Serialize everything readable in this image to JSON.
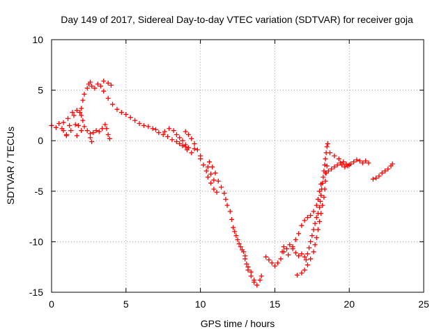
{
  "chart_data": {
    "type": "scatter",
    "title": "Day 149 of 2017, Sidereal Day-to-day VTEC variation (SDTVAR) for receiver goja",
    "xlabel": "GPS time / hours",
    "ylabel": "SDTVAR / TECUs",
    "xlim": [
      0,
      25
    ],
    "ylim": [
      -15,
      10
    ],
    "xticks": [
      0,
      5,
      10,
      15,
      20,
      25
    ],
    "yticks": [
      10,
      5,
      0,
      -5,
      -10,
      -15
    ],
    "grid": true,
    "marker": "+",
    "color": "#ff0000",
    "series": [
      {
        "name": "segment-1",
        "points": [
          [
            0.0,
            1.5
          ],
          [
            0.3,
            1.3
          ],
          [
            0.5,
            1.7
          ],
          [
            0.7,
            1.2
          ],
          [
            0.8,
            1.8
          ],
          [
            1.0,
            0.6
          ],
          [
            1.1,
            2.2
          ],
          [
            1.3,
            1.0
          ],
          [
            1.4,
            2.8
          ],
          [
            1.6,
            1.6
          ],
          [
            1.7,
            0.5
          ],
          [
            1.8,
            1.5
          ],
          [
            1.9,
            2.8
          ],
          [
            2.0,
            3.2
          ],
          [
            2.1,
            2.0
          ],
          [
            2.0,
            1.0
          ]
        ]
      },
      {
        "name": "segment-2",
        "points": [
          [
            0.8,
            1.0
          ],
          [
            1.0,
            0.5
          ],
          [
            1.2,
            1.5
          ],
          [
            1.5,
            2.5
          ],
          [
            1.7,
            3.0
          ],
          [
            2.0,
            2.5
          ],
          [
            2.1,
            4.0
          ],
          [
            2.2,
            4.6
          ],
          [
            2.4,
            5.2
          ],
          [
            2.5,
            5.6
          ],
          [
            2.6,
            5.8
          ],
          [
            2.7,
            5.4
          ],
          [
            2.9,
            5.2
          ],
          [
            3.1,
            5.6
          ],
          [
            3.3,
            5.4
          ],
          [
            3.5,
            5.9
          ],
          [
            3.8,
            5.7
          ],
          [
            4.0,
            5.5
          ]
        ]
      },
      {
        "name": "segment-3",
        "points": [
          [
            2.2,
            1.4
          ],
          [
            2.4,
            1.0
          ],
          [
            2.6,
            0.7
          ],
          [
            2.8,
            0.8
          ],
          [
            3.0,
            1.0
          ],
          [
            3.2,
            0.9
          ],
          [
            3.4,
            1.2
          ],
          [
            3.6,
            1.6
          ],
          [
            3.7,
            1.2
          ],
          [
            3.8,
            0.6
          ],
          [
            3.9,
            0.2
          ],
          [
            2.6,
            0.3
          ],
          [
            2.7,
            -0.1
          ]
        ]
      },
      {
        "name": "segment-4",
        "points": [
          [
            3.5,
            4.9
          ],
          [
            3.8,
            4.2
          ],
          [
            4.1,
            3.6
          ],
          [
            4.4,
            3.1
          ],
          [
            4.7,
            2.8
          ],
          [
            5.0,
            2.6
          ],
          [
            5.3,
            2.3
          ],
          [
            5.6,
            2.0
          ],
          [
            5.9,
            1.7
          ],
          [
            6.2,
            1.5
          ],
          [
            6.5,
            1.4
          ],
          [
            6.8,
            1.2
          ],
          [
            7.0,
            1.1
          ],
          [
            7.2,
            0.8
          ],
          [
            7.5,
            0.6
          ],
          [
            7.8,
            0.4
          ],
          [
            8.1,
            0.1
          ],
          [
            8.4,
            -0.1
          ],
          [
            8.6,
            -0.3
          ],
          [
            8.8,
            -0.5
          ],
          [
            9.0,
            -0.6
          ]
        ]
      },
      {
        "name": "segment-5",
        "points": [
          [
            7.6,
            0.9
          ],
          [
            7.9,
            1.2
          ],
          [
            8.2,
            1.0
          ],
          [
            8.4,
            0.6
          ],
          [
            8.6,
            0.3
          ],
          [
            8.8,
            0.0
          ],
          [
            9.0,
            -0.4
          ],
          [
            9.1,
            -0.9
          ],
          [
            9.0,
            0.9
          ],
          [
            9.2,
            0.6
          ],
          [
            9.4,
            0.2
          ],
          [
            9.6,
            -0.3
          ],
          [
            9.8,
            -0.9
          ],
          [
            10.0,
            -1.5
          ],
          [
            9.6,
            -0.8
          ],
          [
            9.4,
            -1.2
          ],
          [
            9.2,
            -0.7
          ]
        ]
      },
      {
        "name": "segment-6",
        "points": [
          [
            10.0,
            -1.8
          ],
          [
            10.2,
            -2.4
          ],
          [
            10.4,
            -3.0
          ],
          [
            10.5,
            -3.6
          ],
          [
            10.7,
            -4.2
          ],
          [
            10.9,
            -4.8
          ],
          [
            11.1,
            -5.1
          ],
          [
            10.9,
            -3.9
          ],
          [
            10.7,
            -3.3
          ],
          [
            10.5,
            -2.6
          ],
          [
            10.6,
            -2.1
          ],
          [
            10.8,
            -2.6
          ],
          [
            11.0,
            -3.2
          ],
          [
            11.2,
            -4.0
          ],
          [
            11.4,
            -4.6
          ],
          [
            11.6,
            -5.2
          ],
          [
            11.7,
            -5.8
          ],
          [
            11.8,
            -6.4
          ],
          [
            12.0,
            -7.0
          ],
          [
            12.1,
            -7.8
          ],
          [
            12.2,
            -8.6
          ],
          [
            12.4,
            -9.4
          ],
          [
            12.6,
            -10.2
          ],
          [
            12.8,
            -10.8
          ],
          [
            13.0,
            -11.4
          ],
          [
            13.1,
            -12.2
          ],
          [
            13.2,
            -12.8
          ],
          [
            13.4,
            -13.4
          ],
          [
            13.6,
            -14.0
          ],
          [
            13.8,
            -14.3
          ],
          [
            14.0,
            -13.8
          ],
          [
            14.1,
            -13.4
          ]
        ]
      },
      {
        "name": "segment-7",
        "points": [
          [
            12.3,
            -9.0
          ],
          [
            12.5,
            -9.8
          ],
          [
            12.7,
            -10.5
          ],
          [
            12.9,
            -11.0
          ],
          [
            13.0,
            -11.7
          ],
          [
            13.2,
            -12.5
          ],
          [
            13.4,
            -13.0
          ],
          [
            13.6,
            -13.8
          ]
        ]
      },
      {
        "name": "segment-8",
        "points": [
          [
            14.4,
            -11.5
          ],
          [
            14.6,
            -11.8
          ],
          [
            14.8,
            -12.1
          ],
          [
            15.0,
            -12.4
          ],
          [
            15.2,
            -12.1
          ],
          [
            15.4,
            -11.7
          ],
          [
            15.5,
            -11.0
          ],
          [
            15.6,
            -10.5
          ],
          [
            15.8,
            -10.7
          ],
          [
            16.0,
            -10.3
          ],
          [
            16.2,
            -10.7
          ],
          [
            16.4,
            -11.1
          ],
          [
            16.6,
            -11.4
          ],
          [
            16.8,
            -11.2
          ],
          [
            17.0,
            -11.5
          ],
          [
            17.1,
            -11.8
          ],
          [
            17.2,
            -11.2
          ],
          [
            17.3,
            -10.6
          ],
          [
            17.4,
            -10.0
          ],
          [
            17.5,
            -9.4
          ],
          [
            17.6,
            -8.8
          ],
          [
            17.7,
            -8.2
          ],
          [
            17.8,
            -7.6
          ],
          [
            17.9,
            -7.2
          ],
          [
            18.0,
            -6.6
          ],
          [
            18.05,
            -6.0
          ],
          [
            18.1,
            -5.4
          ],
          [
            18.15,
            -4.8
          ],
          [
            18.2,
            -4.2
          ],
          [
            18.25,
            -3.6
          ],
          [
            18.3,
            -3.0
          ],
          [
            18.35,
            -2.4
          ],
          [
            18.4,
            -1.8
          ],
          [
            18.45,
            -1.2
          ],
          [
            18.5,
            -0.6
          ],
          [
            18.55,
            -0.3
          ]
        ]
      },
      {
        "name": "segment-9",
        "points": [
          [
            15.6,
            -11.0
          ],
          [
            15.9,
            -11.3
          ],
          [
            16.2,
            -10.5
          ],
          [
            16.4,
            -9.8
          ],
          [
            16.6,
            -9.2
          ],
          [
            16.8,
            -8.4
          ],
          [
            17.0,
            -7.9
          ],
          [
            17.2,
            -7.6
          ],
          [
            17.4,
            -7.4
          ],
          [
            17.6,
            -7.0
          ],
          [
            17.8,
            -6.4
          ],
          [
            17.9,
            -5.8
          ],
          [
            18.0,
            -5.0
          ],
          [
            18.1,
            -4.3
          ]
        ]
      },
      {
        "name": "segment-10",
        "points": [
          [
            16.5,
            -13.3
          ],
          [
            16.8,
            -13.1
          ],
          [
            17.0,
            -12.8
          ],
          [
            17.2,
            -12.3
          ],
          [
            17.4,
            -11.7
          ],
          [
            17.6,
            -11.0
          ],
          [
            17.7,
            -10.3
          ],
          [
            17.8,
            -9.6
          ],
          [
            17.9,
            -8.8
          ],
          [
            18.0,
            -8.0
          ],
          [
            18.1,
            -7.2
          ],
          [
            18.2,
            -6.4
          ],
          [
            18.3,
            -5.6
          ],
          [
            18.35,
            -4.8
          ],
          [
            18.4,
            -4.0
          ],
          [
            18.45,
            -3.2
          ],
          [
            18.5,
            -2.5
          ]
        ]
      },
      {
        "name": "segment-11",
        "points": [
          [
            18.4,
            -3.2
          ],
          [
            18.6,
            -3.0
          ],
          [
            18.8,
            -2.8
          ],
          [
            19.0,
            -2.6
          ],
          [
            19.2,
            -2.4
          ],
          [
            19.4,
            -2.2
          ],
          [
            19.5,
            -2.4
          ],
          [
            19.7,
            -2.6
          ],
          [
            19.9,
            -2.5
          ],
          [
            20.1,
            -2.3
          ],
          [
            20.3,
            -2.1
          ],
          [
            20.5,
            -1.9
          ],
          [
            20.7,
            -2.0
          ],
          [
            20.9,
            -2.2
          ],
          [
            21.1,
            -2.0
          ],
          [
            21.3,
            -2.2
          ]
        ]
      },
      {
        "name": "segment-12",
        "points": [
          [
            18.7,
            -1.2
          ],
          [
            19.0,
            -1.5
          ],
          [
            19.3,
            -1.8
          ],
          [
            19.6,
            -2.1
          ],
          [
            19.8,
            -2.3
          ],
          [
            20.0,
            -2.4
          ]
        ]
      },
      {
        "name": "segment-13",
        "points": [
          [
            21.6,
            -3.8
          ],
          [
            21.8,
            -3.7
          ],
          [
            22.0,
            -3.5
          ],
          [
            22.2,
            -3.2
          ],
          [
            22.4,
            -3.0
          ],
          [
            22.6,
            -2.8
          ],
          [
            22.8,
            -2.5
          ],
          [
            22.9,
            -2.3
          ]
        ]
      }
    ]
  }
}
